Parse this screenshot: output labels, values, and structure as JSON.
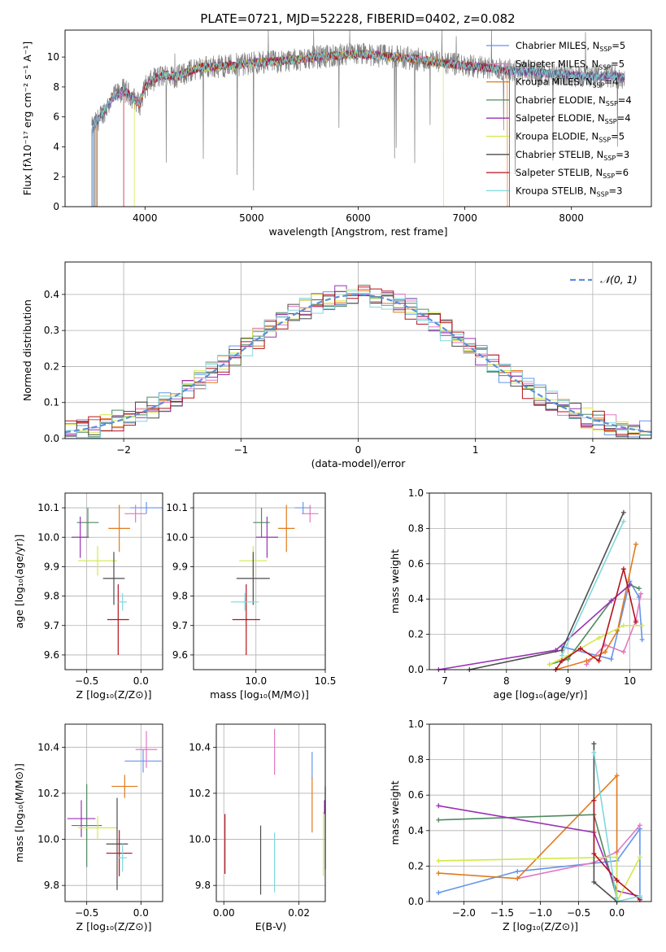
{
  "chart_data": [
    {
      "type": "line",
      "title": "PLATE=0721, MJD=52228, FIBERID=0402, z=0.082",
      "xlabel": "wavelength [Angstrom, rest frame]",
      "ylabel": "Flux [fλ10⁻¹⁷ erg cm⁻² s⁻¹ A⁻¹]",
      "xlim": [
        3250,
        8750
      ],
      "ylim": [
        0,
        11.8
      ],
      "xticks": [
        4000,
        5000,
        6000,
        7000,
        8000
      ],
      "yticks": [
        0,
        2,
        4,
        6,
        8,
        10
      ],
      "grid": false,
      "legend_position": "right",
      "series": [
        {
          "name": "Chabrier MILES, N_SSP=5",
          "label_main": "Chabrier MILES, N",
          "label_sub": "SSP",
          "label_tail": "=5",
          "color": "#6495ed"
        },
        {
          "name": "Salpeter MILES, N_SSP=5",
          "label_main": "Salpeter MILES, N",
          "label_sub": "SSP",
          "label_tail": "=5",
          "color": "#e377c2"
        },
        {
          "name": "Kroupa MILES, N_SSP=4",
          "label_main": "Kroupa MILES, N",
          "label_sub": "SSP",
          "label_tail": "=4",
          "color": "#e07b1e"
        },
        {
          "name": "Chabrier ELODIE, N_SSP=4",
          "label_main": "Chabrier ELODIE, N",
          "label_sub": "SSP",
          "label_tail": "=4",
          "color": "#4f8a5f"
        },
        {
          "name": "Salpeter ELODIE, N_SSP=4",
          "label_main": "Salpeter ELODIE, N",
          "label_sub": "SSP",
          "label_tail": "=4",
          "color": "#9a32b4"
        },
        {
          "name": "Kroupa ELODIE, N_SSP=5",
          "label_main": "Kroupa ELODIE, N",
          "label_sub": "SSP",
          "label_tail": "=5",
          "color": "#d4e84a"
        },
        {
          "name": "Chabrier STELIB, N_SSP=3",
          "label_main": "Chabrier STELIB, N",
          "label_sub": "SSP",
          "label_tail": "=3",
          "color": "#4d4d4d"
        },
        {
          "name": "Salpeter STELIB, N_SSP=6",
          "label_main": "Salpeter STELIB, N",
          "label_sub": "SSP",
          "label_tail": "=6",
          "color": "#b5121b"
        },
        {
          "name": "Kroupa STELIB, N_SSP=3",
          "label_main": "Kroupa STELIB, N",
          "label_sub": "SSP",
          "label_tail": "=3",
          "color": "#7fd8dc"
        }
      ],
      "continuum": [
        [
          3500,
          5.2
        ],
        [
          3600,
          6.2
        ],
        [
          3700,
          7.3
        ],
        [
          3800,
          7.8
        ],
        [
          3900,
          7.2
        ],
        [
          3950,
          6.8
        ],
        [
          4000,
          8.0
        ],
        [
          4100,
          8.6
        ],
        [
          4200,
          8.8
        ],
        [
          4300,
          8.7
        ],
        [
          4400,
          9.0
        ],
        [
          4500,
          9.3
        ],
        [
          4700,
          9.4
        ],
        [
          4900,
          9.5
        ],
        [
          5000,
          9.6
        ],
        [
          5200,
          9.7
        ],
        [
          5400,
          9.8
        ],
        [
          5600,
          10.0
        ],
        [
          5800,
          10.1
        ],
        [
          6000,
          10.2
        ],
        [
          6200,
          10.1
        ],
        [
          6500,
          9.9
        ],
        [
          6800,
          9.6
        ],
        [
          7000,
          9.4
        ],
        [
          7200,
          9.3
        ],
        [
          7400,
          9.1
        ],
        [
          7600,
          9.0
        ],
        [
          7800,
          8.9
        ],
        [
          8000,
          8.8
        ],
        [
          8200,
          8.7
        ],
        [
          8400,
          8.7
        ],
        [
          8500,
          8.6
        ]
      ],
      "data_color": "#808080"
    },
    {
      "type": "line",
      "xlabel": "(data-model)/error",
      "ylabel": "Normed distribution",
      "xlim": [
        -2.5,
        2.5
      ],
      "ylim": [
        0,
        0.49
      ],
      "xticks": [
        -2,
        -1,
        0,
        1,
        2
      ],
      "yticks": [
        0.0,
        0.1,
        0.2,
        0.3,
        0.4
      ],
      "grid": true,
      "legend_position": "top-right",
      "legend": "𝒩(0, 1)",
      "gaussian_color": "#5b8fd9"
    },
    {
      "type": "scatter",
      "xlabel": "Z [log₁₀(Z/Z⊙)]",
      "ylabel": "age  [log₁₀(age/yr)]",
      "xlim": [
        -0.7,
        0.2
      ],
      "ylim": [
        9.55,
        10.15
      ],
      "xticks": [
        -0.5,
        0.0
      ],
      "yticks": [
        9.6,
        9.7,
        9.8,
        9.9,
        10.0,
        10.1
      ],
      "points": [
        {
          "series": 0,
          "x": 0.05,
          "y": 10.1,
          "xerr": 0.15,
          "yerr": 0.02
        },
        {
          "series": 1,
          "x": -0.05,
          "y": 10.08,
          "xerr": 0.1,
          "yerr": 0.03
        },
        {
          "series": 2,
          "x": -0.2,
          "y": 10.03,
          "xerr": 0.1,
          "yerr": 0.08
        },
        {
          "series": 3,
          "x": -0.49,
          "y": 10.05,
          "xerr": 0.1,
          "yerr": 0.05
        },
        {
          "series": 4,
          "x": -0.56,
          "y": 10.0,
          "xerr": 0.08,
          "yerr": 0.07
        },
        {
          "series": 5,
          "x": -0.4,
          "y": 9.92,
          "xerr": 0.18,
          "yerr": 0.05
        },
        {
          "series": 6,
          "x": -0.25,
          "y": 9.86,
          "xerr": 0.1,
          "yerr": 0.09
        },
        {
          "series": 7,
          "x": -0.21,
          "y": 9.72,
          "xerr": 0.1,
          "yerr": 0.12
        },
        {
          "series": 8,
          "x": -0.17,
          "y": 9.78,
          "xerr": 0.04,
          "yerr": 0.03
        }
      ]
    },
    {
      "type": "scatter",
      "xlabel": "mass [log₁₀(M/M⊙)]",
      "ylabel": "",
      "xlim": [
        9.55,
        10.5
      ],
      "ylim": [
        9.55,
        10.15
      ],
      "xticks": [
        10.0,
        10.5
      ],
      "yticks": [
        9.6,
        9.7,
        9.8,
        9.9,
        10.0,
        10.1
      ],
      "points": [
        {
          "series": 0,
          "x": 10.34,
          "y": 10.1,
          "xerr": 0.06,
          "yerr": 0.02
        },
        {
          "series": 1,
          "x": 10.39,
          "y": 10.08,
          "xerr": 0.06,
          "yerr": 0.03
        },
        {
          "series": 2,
          "x": 10.22,
          "y": 10.03,
          "xerr": 0.06,
          "yerr": 0.08
        },
        {
          "series": 3,
          "x": 10.04,
          "y": 10.05,
          "xerr": 0.06,
          "yerr": 0.05
        },
        {
          "series": 4,
          "x": 10.08,
          "y": 10.0,
          "xerr": 0.08,
          "yerr": 0.07
        },
        {
          "series": 5,
          "x": 9.98,
          "y": 9.92,
          "xerr": 0.1,
          "yerr": 0.05
        },
        {
          "series": 6,
          "x": 9.98,
          "y": 9.86,
          "xerr": 0.12,
          "yerr": 0.09
        },
        {
          "series": 7,
          "x": 9.93,
          "y": 9.72,
          "xerr": 0.1,
          "yerr": 0.12
        },
        {
          "series": 8,
          "x": 9.92,
          "y": 9.78,
          "xerr": 0.1,
          "yerr": 0.03
        }
      ]
    },
    {
      "type": "line",
      "xlabel": "age  [log₁₀(age/yr)]",
      "ylabel": "mass weight",
      "xlim": [
        6.75,
        10.35
      ],
      "ylim": [
        0,
        1.0
      ],
      "xticks": [
        7,
        8,
        9,
        10
      ],
      "yticks": [
        0.0,
        0.2,
        0.4,
        0.6,
        0.8,
        1.0
      ],
      "grid": true,
      "series": [
        {
          "series": 0,
          "points": [
            [
              8.9,
              0.13
            ],
            [
              9.7,
              0.06
            ],
            [
              10.0,
              0.5
            ],
            [
              10.15,
              0.41
            ],
            [
              10.2,
              0.17
            ]
          ]
        },
        {
          "series": 1,
          "points": [
            [
              9.3,
              0.03
            ],
            [
              9.6,
              0.14
            ],
            [
              9.9,
              0.1
            ],
            [
              10.1,
              0.28
            ],
            [
              10.18,
              0.43
            ]
          ]
        },
        {
          "series": 2,
          "points": [
            [
              8.8,
              0.0
            ],
            [
              9.3,
              0.05
            ],
            [
              9.6,
              0.1
            ],
            [
              9.8,
              0.22
            ],
            [
              10.1,
              0.71
            ]
          ]
        },
        {
          "series": 3,
          "points": [
            [
              8.7,
              0.03
            ],
            [
              9.0,
              0.06
            ],
            [
              9.7,
              0.39
            ],
            [
              10.0,
              0.48
            ],
            [
              10.15,
              0.46
            ]
          ]
        },
        {
          "series": 4,
          "points": [
            [
              6.9,
              0.0
            ],
            [
              8.8,
              0.11
            ],
            [
              9.7,
              0.39
            ],
            [
              10.0,
              0.48
            ]
          ]
        },
        {
          "series": 5,
          "points": [
            [
              8.7,
              0.03
            ],
            [
              9.0,
              0.08
            ],
            [
              9.5,
              0.18
            ],
            [
              9.9,
              0.25
            ],
            [
              10.2,
              0.25
            ]
          ]
        },
        {
          "series": 6,
          "points": [
            [
              7.4,
              0.0
            ],
            [
              8.9,
              0.11
            ],
            [
              9.9,
              0.89
            ]
          ]
        },
        {
          "series": 7,
          "points": [
            [
              8.8,
              0.0
            ],
            [
              8.9,
              0.05
            ],
            [
              9.2,
              0.12
            ],
            [
              9.5,
              0.05
            ],
            [
              9.9,
              0.57
            ],
            [
              10.1,
              0.27
            ]
          ]
        },
        {
          "series": 8,
          "points": [
            [
              8.9,
              0.08
            ],
            [
              9.9,
              0.84
            ]
          ]
        }
      ]
    },
    {
      "type": "scatter",
      "xlabel": "Z [log₁₀(Z/Z⊙)]",
      "ylabel": "mass [log₁₀(M/M⊙)]",
      "xlim": [
        -0.7,
        0.2
      ],
      "ylim": [
        9.73,
        10.5
      ],
      "xticks": [
        -0.5,
        0.0
      ],
      "yticks": [
        9.8,
        10.0,
        10.2,
        10.4
      ],
      "points": [
        {
          "series": 0,
          "x": 0.02,
          "y": 10.34,
          "xerr": 0.17,
          "yerr": 0.05
        },
        {
          "series": 1,
          "x": 0.05,
          "y": 10.39,
          "xerr": 0.1,
          "yerr": 0.08
        },
        {
          "series": 2,
          "x": -0.15,
          "y": 10.23,
          "xerr": 0.12,
          "yerr": 0.05
        },
        {
          "series": 3,
          "x": -0.5,
          "y": 10.06,
          "xerr": 0.14,
          "yerr": 0.18
        },
        {
          "series": 4,
          "x": -0.55,
          "y": 10.09,
          "xerr": 0.13,
          "yerr": 0.08
        },
        {
          "series": 5,
          "x": -0.4,
          "y": 10.05,
          "xerr": 0.18,
          "yerr": 0.05
        },
        {
          "series": 6,
          "x": -0.22,
          "y": 9.98,
          "xerr": 0.1,
          "yerr": 0.2
        },
        {
          "series": 7,
          "x": -0.2,
          "y": 9.94,
          "xerr": 0.12,
          "yerr": 0.1
        },
        {
          "series": 8,
          "x": -0.17,
          "y": 9.92,
          "xerr": 0.04,
          "yerr": 0.06
        }
      ]
    },
    {
      "type": "scatter",
      "xlabel": "E(B-V)",
      "ylabel": "",
      "xlim": [
        -0.002,
        0.027
      ],
      "ylim": [
        9.73,
        10.5
      ],
      "xticks": [
        0.0,
        0.02
      ],
      "yticks": [
        9.8,
        10.0,
        10.2,
        10.4
      ],
      "points": [
        {
          "series": 0,
          "x": 0.0235,
          "y": 10.32,
          "xerr": 0,
          "yerr": 0.06
        },
        {
          "series": 1,
          "x": 0.0135,
          "y": 10.38,
          "xerr": 0,
          "yerr": 0.1
        },
        {
          "series": 2,
          "x": 0.0235,
          "y": 10.15,
          "xerr": 0,
          "yerr": 0.12
        },
        {
          "series": 3,
          "x": 0.027,
          "y": 10.05,
          "xerr": 0,
          "yerr": 0.18
        },
        {
          "series": 4,
          "x": 0.0268,
          "y": 10.14,
          "xerr": 0,
          "yerr": 0.03
        },
        {
          "series": 5,
          "x": 0.0265,
          "y": 9.98,
          "xerr": 0,
          "yerr": 0.14
        },
        {
          "series": 6,
          "x": 0.0098,
          "y": 9.91,
          "xerr": 0,
          "yerr": 0.15
        },
        {
          "series": 7,
          "x": 0.0003,
          "y": 9.98,
          "xerr": 0,
          "yerr": 0.13
        },
        {
          "series": 8,
          "x": 0.0135,
          "y": 9.9,
          "xerr": 0,
          "yerr": 0.13
        }
      ]
    },
    {
      "type": "line",
      "xlabel": "Z [log₁₀(Z/Z⊙)]",
      "ylabel": "mass weight",
      "xlim": [
        -2.45,
        0.45
      ],
      "ylim": [
        0,
        1.0
      ],
      "xticks": [
        -2.0,
        -1.5,
        -1.0,
        -0.5,
        0.0
      ],
      "yticks": [
        0.0,
        0.2,
        0.4,
        0.6,
        0.8,
        1.0
      ],
      "grid": true,
      "series": [
        {
          "series": 0,
          "points": [
            [
              -2.33,
              0.05
            ],
            [
              -1.3,
              0.17
            ],
            [
              0.0,
              0.23
            ],
            [
              0.3,
              0.41
            ],
            [
              0.3,
              0.02
            ]
          ]
        },
        {
          "series": 1,
          "points": [
            [
              -1.3,
              0.13
            ],
            [
              -0.3,
              0.22
            ],
            [
              0.0,
              0.28
            ],
            [
              0.3,
              0.43
            ]
          ]
        },
        {
          "series": 2,
          "points": [
            [
              -2.33,
              0.16
            ],
            [
              -1.3,
              0.13
            ],
            [
              0.0,
              0.71
            ],
            [
              0.0,
              0.0
            ]
          ]
        },
        {
          "series": 3,
          "points": [
            [
              -2.33,
              0.46
            ],
            [
              -0.3,
              0.49
            ],
            [
              0.0,
              0.02
            ]
          ]
        },
        {
          "series": 4,
          "points": [
            [
              -2.33,
              0.54
            ],
            [
              -0.3,
              0.39
            ],
            [
              0.0,
              0.06
            ],
            [
              0.3,
              0.03
            ]
          ]
        },
        {
          "series": 5,
          "points": [
            [
              -2.33,
              0.23
            ],
            [
              0.0,
              0.25
            ],
            [
              0.0,
              0.0
            ],
            [
              0.3,
              0.25
            ]
          ]
        },
        {
          "series": 6,
          "points": [
            [
              -0.3,
              0.89
            ],
            [
              -0.3,
              0.11
            ],
            [
              0.0,
              0.0
            ]
          ]
        },
        {
          "series": 7,
          "points": [
            [
              -0.3,
              0.57
            ],
            [
              -0.3,
              0.27
            ],
            [
              0.0,
              0.12
            ],
            [
              0.3,
              0.01
            ]
          ]
        },
        {
          "series": 8,
          "points": [
            [
              -0.3,
              0.84
            ],
            [
              0.0,
              0.0
            ],
            [
              0.3,
              0.03
            ]
          ]
        }
      ]
    }
  ]
}
